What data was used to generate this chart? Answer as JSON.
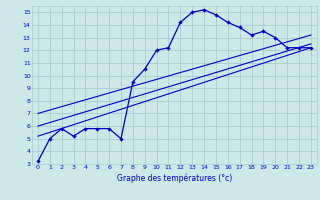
{
  "xlabel": "Graphe des températures (°c)",
  "bg_color": "#cce8e8",
  "grid_color": "#aacccc",
  "line_color": "#0000cc",
  "xlim": [
    -0.5,
    23.5
  ],
  "ylim": [
    3,
    15.5
  ],
  "xticks": [
    0,
    1,
    2,
    3,
    4,
    5,
    6,
    7,
    8,
    9,
    10,
    11,
    12,
    13,
    14,
    15,
    16,
    17,
    18,
    19,
    20,
    21,
    22,
    23
  ],
  "yticks": [
    3,
    4,
    5,
    6,
    7,
    8,
    9,
    10,
    11,
    12,
    13,
    14,
    15
  ],
  "main_x": [
    0,
    1,
    2,
    3,
    4,
    5,
    6,
    7,
    8,
    9,
    10,
    11,
    12,
    13,
    14,
    15,
    16,
    17,
    18,
    19,
    20,
    21,
    22,
    23
  ],
  "main_y": [
    3.2,
    5.0,
    5.8,
    5.2,
    5.8,
    5.8,
    5.8,
    5.0,
    9.5,
    10.5,
    12.0,
    12.2,
    14.2,
    15.0,
    15.2,
    14.8,
    14.2,
    13.8,
    13.2,
    13.5,
    13.0,
    12.2,
    12.2,
    12.2
  ],
  "trend1_x": [
    0,
    23
  ],
  "trend1_y": [
    6.0,
    12.5
  ],
  "trend2_x": [
    0,
    23
  ],
  "trend2_y": [
    7.0,
    13.2
  ],
  "trend3_x": [
    0,
    23
  ],
  "trend3_y": [
    5.2,
    12.2
  ]
}
